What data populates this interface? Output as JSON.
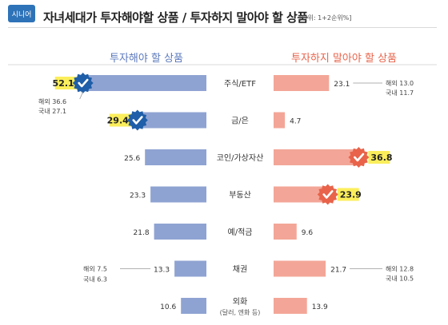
{
  "header": {
    "badge": "시니어",
    "title": "자녀세대가 투자해야할 상품 / 투자하지 말아야 할 상품",
    "unit": "[단위: 1+2순위%]"
  },
  "colors": {
    "left_bar": "#8fa3d2",
    "right_bar": "#f3a697",
    "highlight": "#fbee5b",
    "check_badge_left": "#1f5ea8",
    "check_badge_right": "#e8634a",
    "left_header": "#5b79bd",
    "right_header": "#e8634a"
  },
  "chart_data": {
    "type": "bar",
    "layout": "diverging-butterfly",
    "categories": [
      "주식/ETF",
      "금/은",
      "코인/가상자산",
      "부동산",
      "예/적금",
      "채권",
      "외화"
    ],
    "category_notes": [
      "",
      "",
      "",
      "",
      "",
      "",
      "(달러, 엔화 등)"
    ],
    "series": [
      {
        "name": "투자해야 할 상품",
        "side": "left",
        "values": [
          52.1,
          29.4,
          25.6,
          23.3,
          21.8,
          13.3,
          10.6
        ],
        "highlighted": [
          true,
          true,
          false,
          false,
          false,
          false,
          false
        ],
        "breakdowns": [
          {
            "index": 0,
            "items": [
              "해외 36.6",
              "국내 27.1"
            ]
          },
          {
            "index": 5,
            "items": [
              "해외 7.5",
              "국내 6.3"
            ]
          }
        ]
      },
      {
        "name": "투자하지 말아야 할 상품",
        "side": "right",
        "values": [
          23.1,
          4.7,
          36.8,
          23.9,
          9.6,
          21.7,
          13.9
        ],
        "highlighted": [
          false,
          false,
          true,
          true,
          false,
          false,
          false
        ],
        "breakdowns": [
          {
            "index": 0,
            "items": [
              "해외 13.0",
              "국내 11.7"
            ]
          },
          {
            "index": 5,
            "items": [
              "해외 12.8",
              "국내 10.5"
            ]
          }
        ]
      }
    ]
  }
}
